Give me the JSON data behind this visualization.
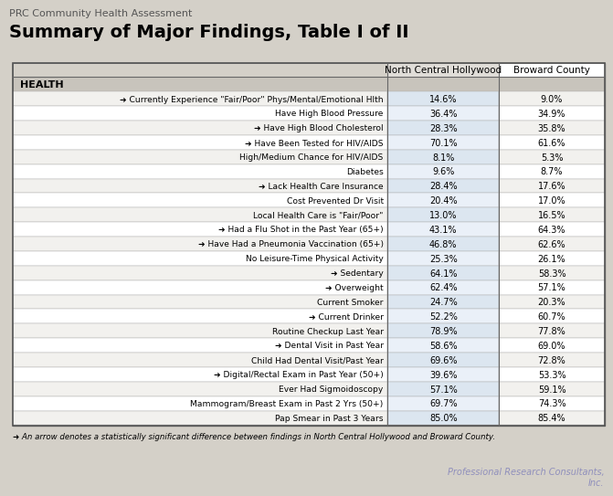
{
  "title_small": "PRC Community Health Assessment",
  "title_large": "Summary of Major Findings, Table I of II",
  "col_headers": [
    "",
    "North Central Hollywood",
    "Broward County"
  ],
  "section_header": "HEALTH",
  "rows": [
    [
      "➜ Currently Experience \"Fair/Poor\" Phys/Mental/Emotional Hlth",
      "14.6%",
      "9.0%",
      true
    ],
    [
      "Have High Blood Pressure",
      "36.4%",
      "34.9%",
      false
    ],
    [
      "➜ Have High Blood Cholesterol",
      "28.3%",
      "35.8%",
      true
    ],
    [
      "➜ Have Been Tested for HIV/AIDS",
      "70.1%",
      "61.6%",
      true
    ],
    [
      "High/Medium Chance for HIV/AIDS",
      "8.1%",
      "5.3%",
      false
    ],
    [
      "Diabetes",
      "9.6%",
      "8.7%",
      false
    ],
    [
      "➜ Lack Health Care Insurance",
      "28.4%",
      "17.6%",
      true
    ],
    [
      "Cost Prevented Dr Visit",
      "20.4%",
      "17.0%",
      false
    ],
    [
      "Local Health Care is \"Fair/Poor\"",
      "13.0%",
      "16.5%",
      false
    ],
    [
      "➜ Had a Flu Shot in the Past Year (65+)",
      "43.1%",
      "64.3%",
      true
    ],
    [
      "➜ Have Had a Pneumonia Vaccination (65+)",
      "46.8%",
      "62.6%",
      true
    ],
    [
      "No Leisure-Time Physical Activity",
      "25.3%",
      "26.1%",
      false
    ],
    [
      "➜ Sedentary",
      "64.1%",
      "58.3%",
      true
    ],
    [
      "➜ Overweight",
      "62.4%",
      "57.1%",
      true
    ],
    [
      "Current Smoker",
      "24.7%",
      "20.3%",
      false
    ],
    [
      "➜ Current Drinker",
      "52.2%",
      "60.7%",
      true
    ],
    [
      "Routine Checkup Last Year",
      "78.9%",
      "77.8%",
      false
    ],
    [
      "➜ Dental Visit in Past Year",
      "58.6%",
      "69.0%",
      true
    ],
    [
      "Child Had Dental Visit/Past Year",
      "69.6%",
      "72.8%",
      false
    ],
    [
      "➜ Digital/Rectal Exam in Past Year (50+)",
      "39.6%",
      "53.3%",
      true
    ],
    [
      "Ever Had Sigmoidoscopy",
      "57.1%",
      "59.1%",
      false
    ],
    [
      "Mammogram/Breast Exam in Past 2 Yrs (50+)",
      "69.7%",
      "74.3%",
      false
    ],
    [
      "Pap Smear in Past 3 Years",
      "85.0%",
      "85.4%",
      false
    ]
  ],
  "footnote": "➜ An arrow denotes a statistically significant difference between findings in North Central Hollywood and Broward County.",
  "watermark": "Professional Research Consultants,\nInc.",
  "bg_color": "#d4d0c8",
  "table_bg": "#ffffff",
  "header_bg": "#d4d0c8",
  "section_bg": "#c8c4bc"
}
